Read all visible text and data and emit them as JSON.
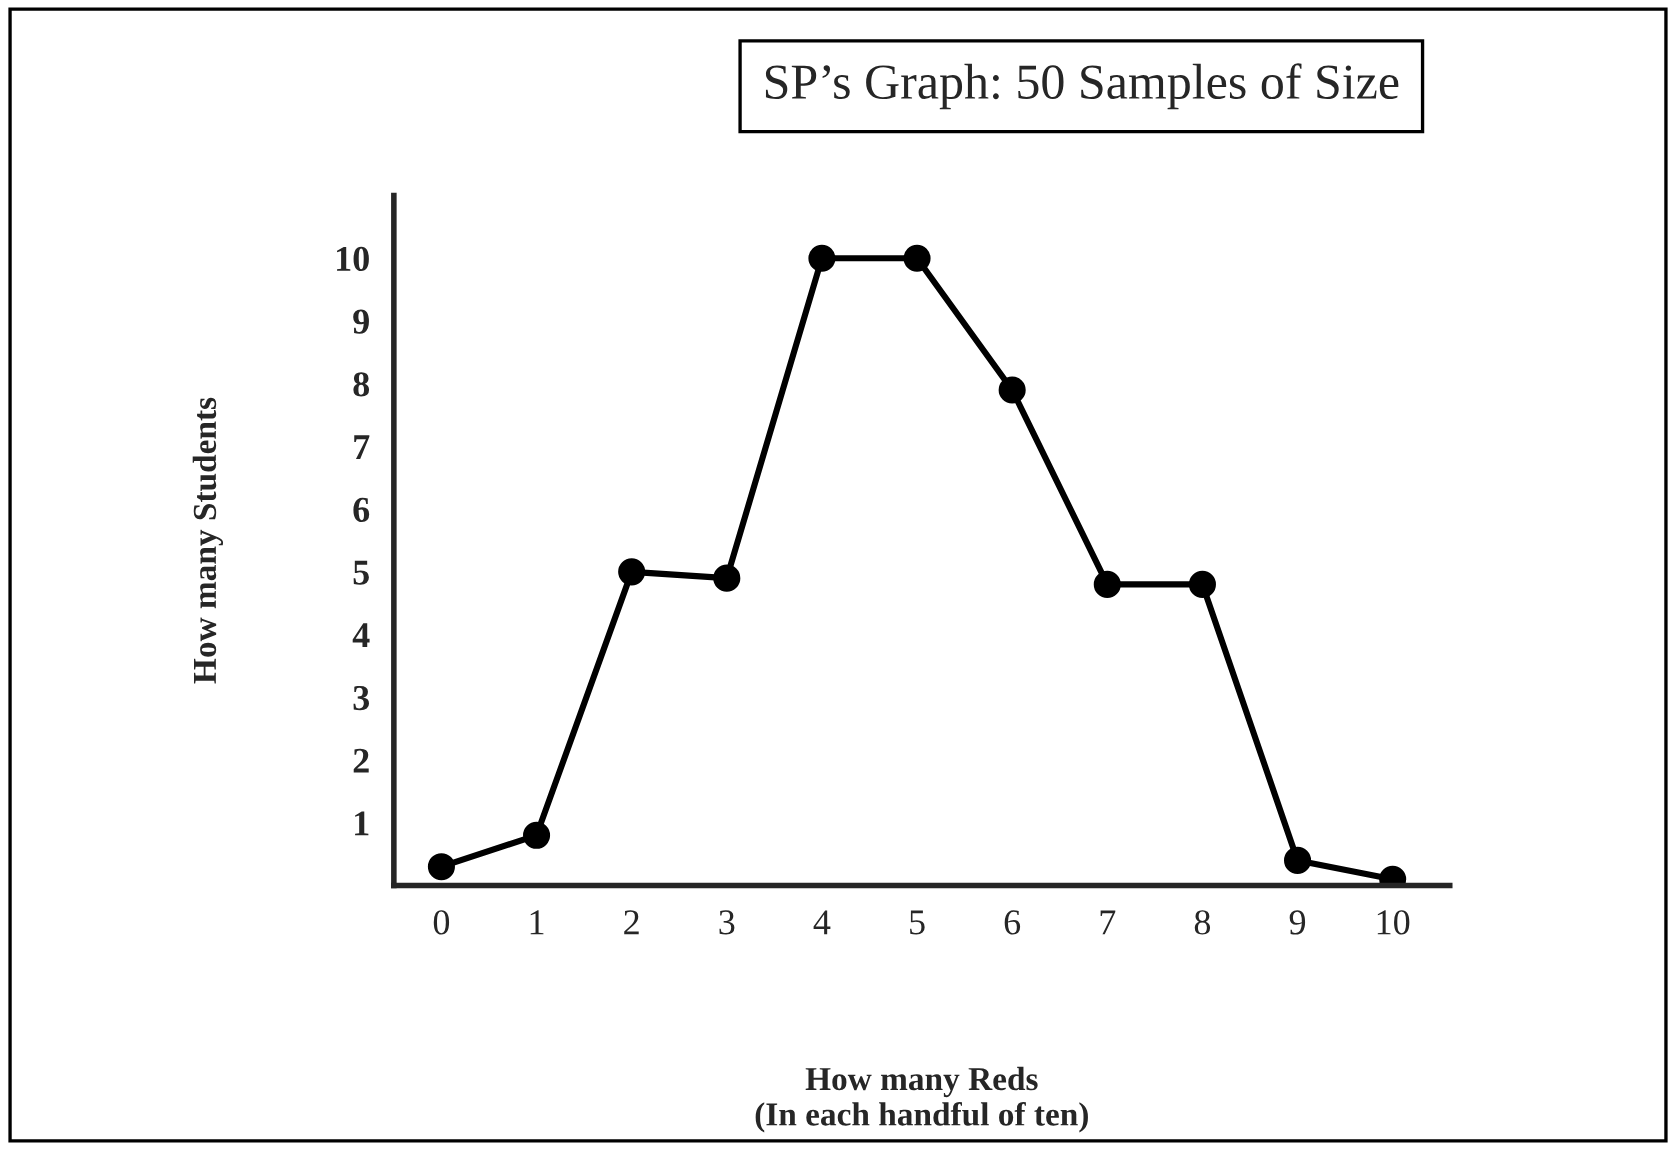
{
  "chart_data": {
    "type": "line",
    "title": "SP’s Graph: 50 Samples of Size",
    "xlabel": "How many Reds\n(In each handful of ten)",
    "ylabel": "How many Students",
    "x": [
      0,
      1,
      2,
      3,
      4,
      5,
      6,
      7,
      8,
      9,
      10
    ],
    "series": [
      {
        "color": "#000000",
        "values": [
          0.3,
          0.8,
          5,
          4.9,
          10,
          10,
          7.9,
          4.8,
          4.8,
          0.4,
          0.1
        ]
      }
    ],
    "xlim": [
      -0.5,
      10.6
    ],
    "ylim": [
      0,
      11
    ],
    "xticks": [
      0,
      1,
      2,
      3,
      4,
      5,
      6,
      7,
      8,
      9,
      10
    ],
    "yticks": [
      1,
      2,
      3,
      4,
      5,
      6,
      7,
      8,
      9,
      10
    ],
    "marker": "circle",
    "line_style": "solid",
    "grid": false,
    "legend": false
  }
}
